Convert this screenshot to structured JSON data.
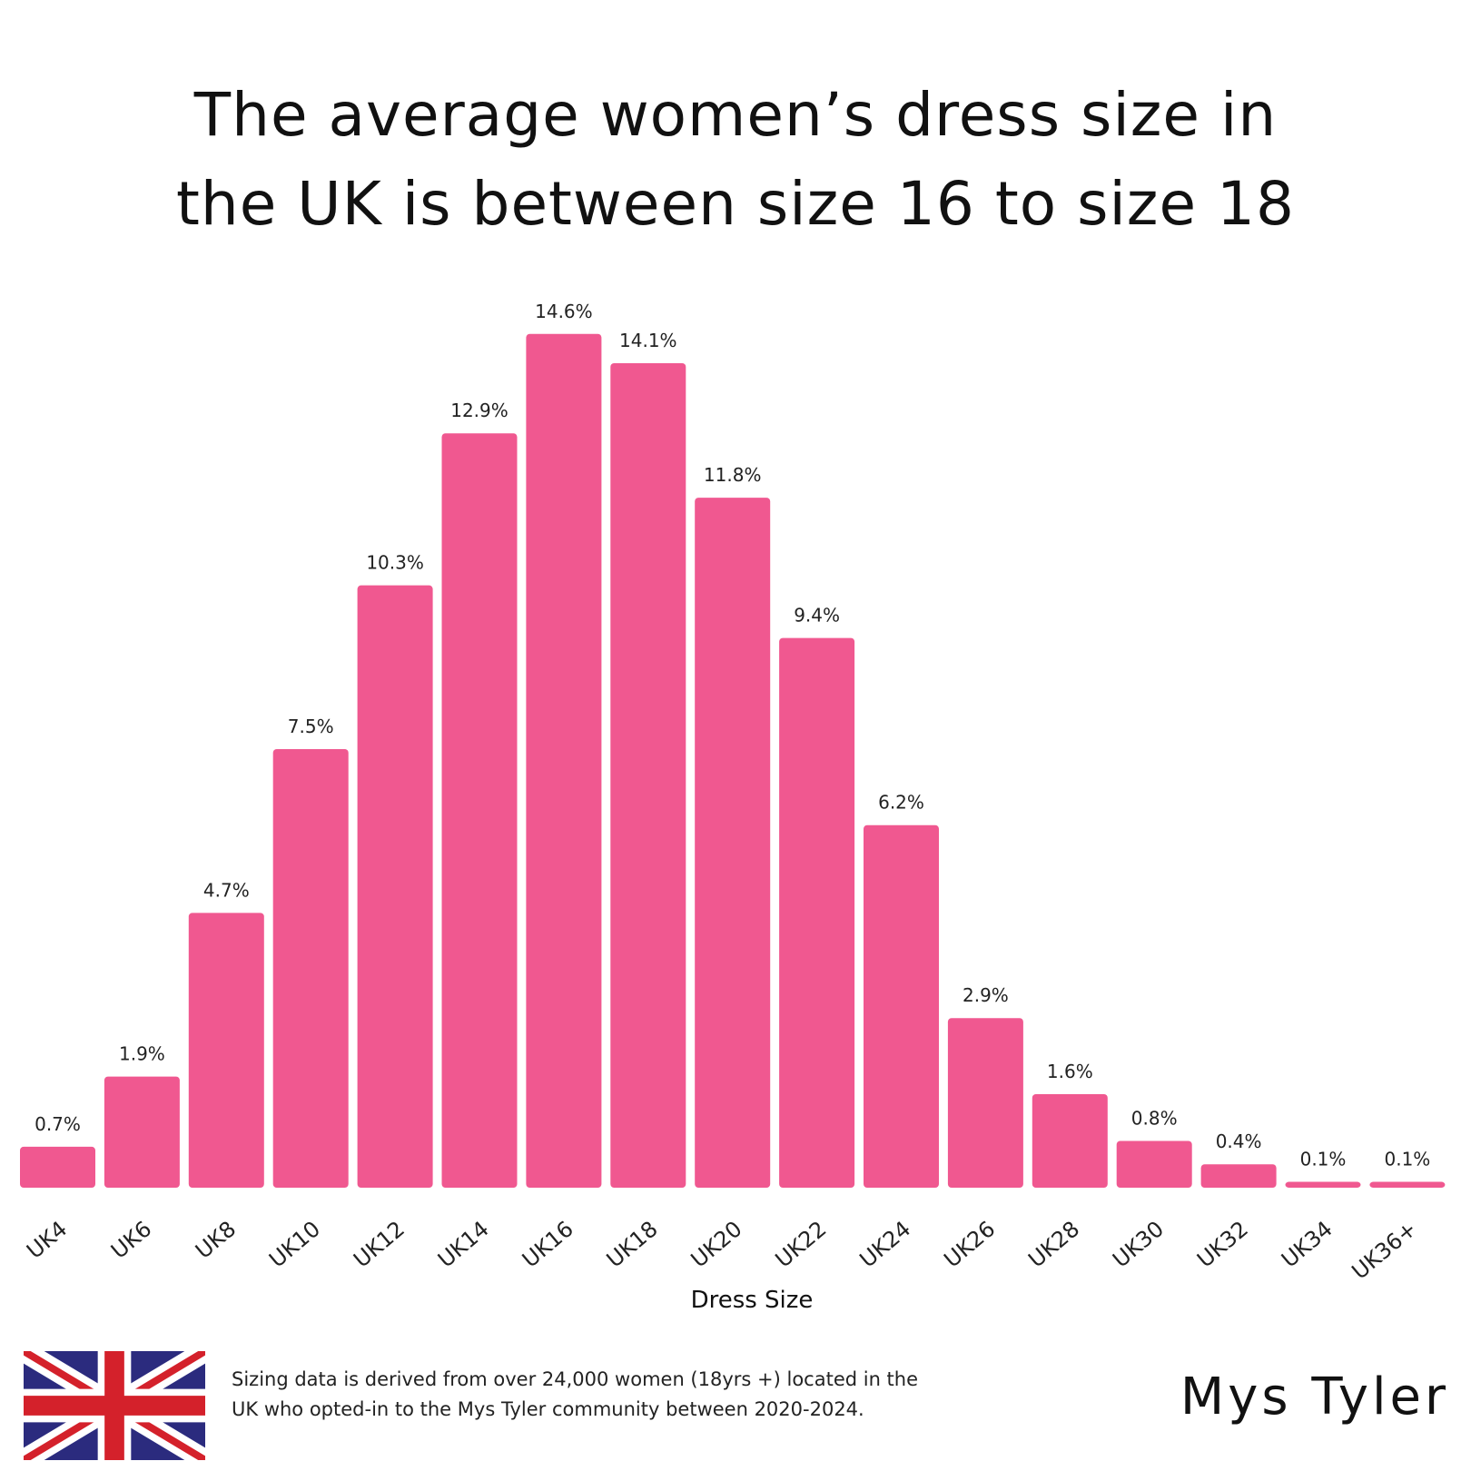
{
  "title_lines": [
    "The average women’s dress size in",
    "the UK is between size 16 to size 18"
  ],
  "footnote_lines": [
    "Sizing data is derived from over 24,000 women (18yrs +)  located in the",
    "UK who opted-in to the Mys Tyler community between 2020-2024."
  ],
  "brand": "Mys Tyler",
  "colors": {
    "bar": "#f05890",
    "background": "#ffffff",
    "flag_blue": "#2b2b7e",
    "flag_red": "#d4212b"
  },
  "flag_icon": "uk-flag-icon",
  "chart_data": {
    "type": "bar",
    "categories": [
      "UK4",
      "UK6",
      "UK8",
      "UK10",
      "UK12",
      "UK14",
      "UK16",
      "UK18",
      "UK20",
      "UK22",
      "UK24",
      "UK26",
      "UK28",
      "UK30",
      "UK32",
      "UK34",
      "UK36+"
    ],
    "values": [
      0.7,
      1.9,
      4.7,
      7.5,
      10.3,
      12.9,
      14.6,
      14.1,
      11.8,
      9.4,
      6.2,
      2.9,
      1.6,
      0.8,
      0.4,
      0.1,
      0.1
    ],
    "value_labels": [
      "0.7%",
      "1.9%",
      "4.7%",
      "7.5%",
      "10.3%",
      "12.9%",
      "14.6%",
      "14.1%",
      "11.8%",
      "9.4%",
      "6.2%",
      "2.9%",
      "1.6%",
      "0.8%",
      "0.4%",
      "0.1%",
      "0.1%"
    ],
    "xlabel": "Dress Size",
    "ylabel": "",
    "ylim": [
      0,
      15
    ],
    "grid": false,
    "legend": "none"
  }
}
